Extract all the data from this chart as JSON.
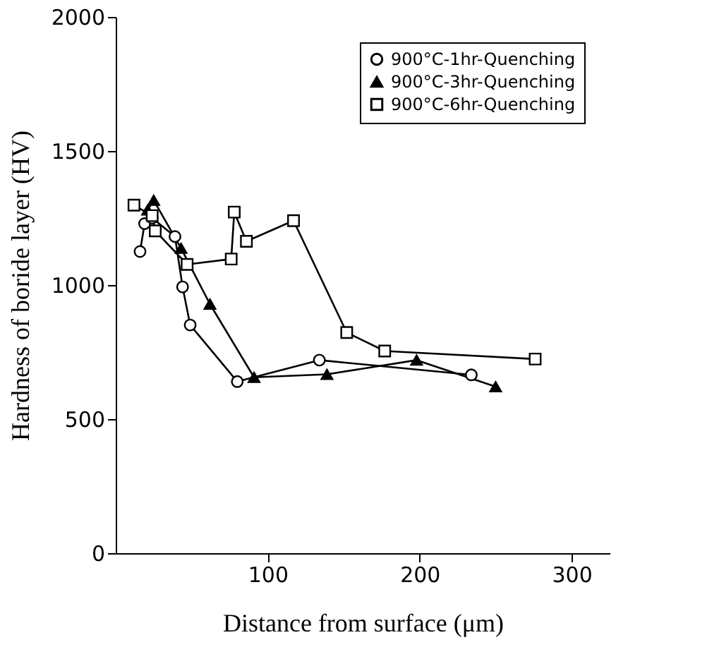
{
  "chart_data": {
    "type": "line",
    "xlabel": "Distance from surface (μm)",
    "ylabel": "Hardness of boride layer (HV)",
    "xlim": [
      0,
      325
    ],
    "xticks": [
      100,
      200,
      300
    ],
    "ylim": [
      0,
      2000
    ],
    "yticks": [
      0,
      500,
      1000,
      1500,
      2000
    ],
    "grid": false,
    "legend": "top right",
    "series": [
      {
        "name": "900°C-1hr-Quenching",
        "color": "#000000",
        "marker": "circle",
        "x": [
          16,
          19,
          24,
          39,
          44,
          49,
          80,
          134,
          234
        ],
        "values": [
          1125,
          1229,
          1250,
          1181,
          993,
          851,
          640,
          720,
          665
        ]
      },
      {
        "name": "900°C-3hr-Quenching",
        "color": "#000000",
        "marker": "triangle",
        "x": [
          21,
          25,
          43,
          62,
          91,
          139,
          198,
          250
        ],
        "values": [
          1280,
          1316,
          1137,
          929,
          656,
          667,
          720,
          621
        ]
      },
      {
        "name": "900°C-6hr-Quenching",
        "color": "#000000",
        "marker": "square",
        "x": [
          12,
          24,
          26,
          47,
          76,
          78,
          86,
          117,
          152,
          177,
          276
        ],
        "values": [
          1298,
          1259,
          1202,
          1077,
          1097,
          1272,
          1163,
          1240,
          823,
          754,
          724
        ]
      }
    ]
  }
}
